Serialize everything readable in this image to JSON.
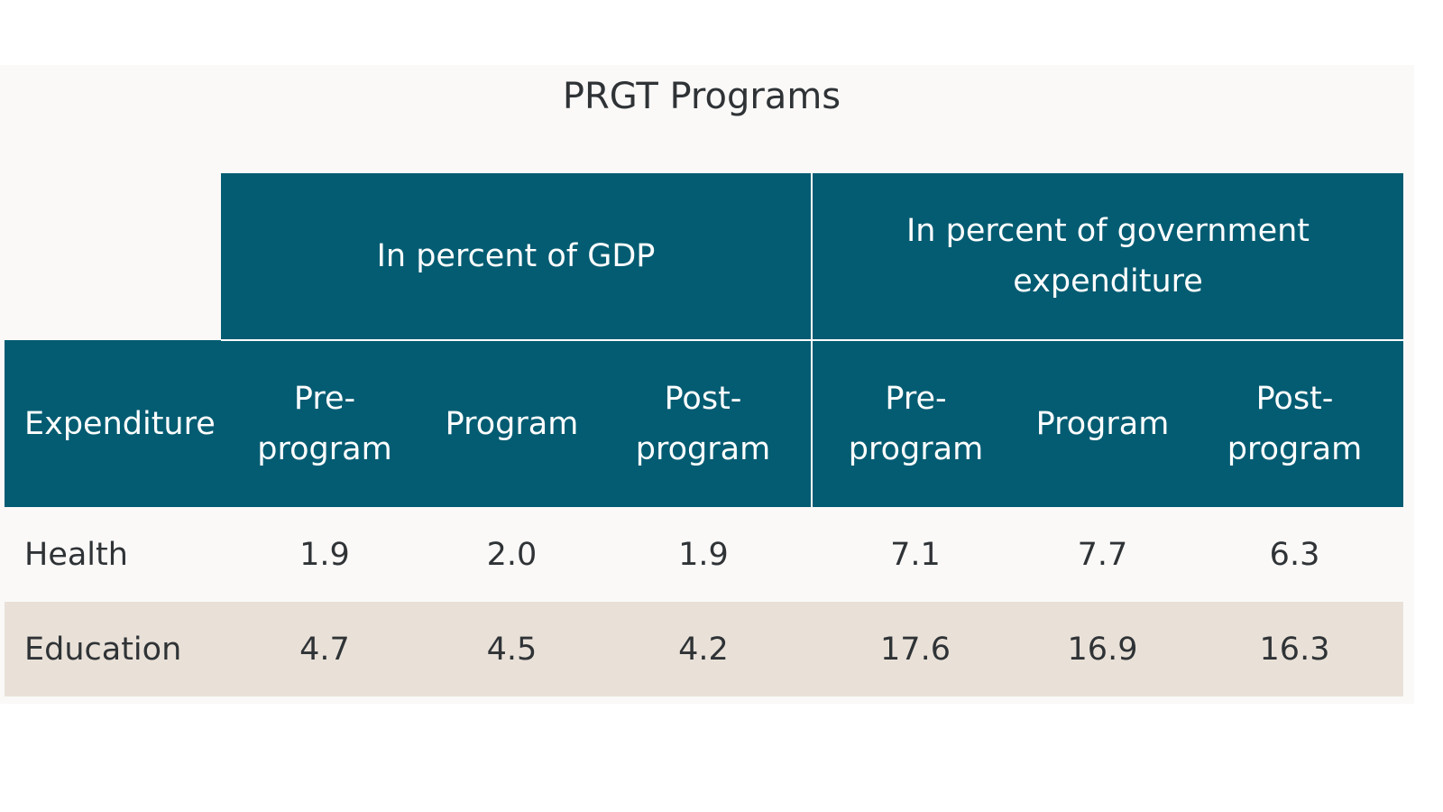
{
  "chart_data": {
    "type": "table",
    "title": "PRGT Programs",
    "column_groups": [
      {
        "label": "In percent of GDP",
        "columns": [
          "Pre-program",
          "Program",
          "Post-program"
        ]
      },
      {
        "label": "In percent of government expenditure",
        "columns": [
          "Pre-program",
          "Program",
          "Post-program"
        ]
      }
    ],
    "row_header": "Expenditure",
    "headers": {
      "expenditure": "Expenditure",
      "pre_program": "Pre-program",
      "program": "Program",
      "post_program": "Post-program"
    },
    "rows": [
      {
        "label": "Health",
        "values": [
          "1.9",
          "2.0",
          "1.9",
          "7.1",
          "7.7",
          "6.3"
        ]
      },
      {
        "label": "Education",
        "values": [
          "4.7",
          "4.5",
          "4.2",
          "17.6",
          "16.9",
          "16.3"
        ]
      }
    ]
  }
}
